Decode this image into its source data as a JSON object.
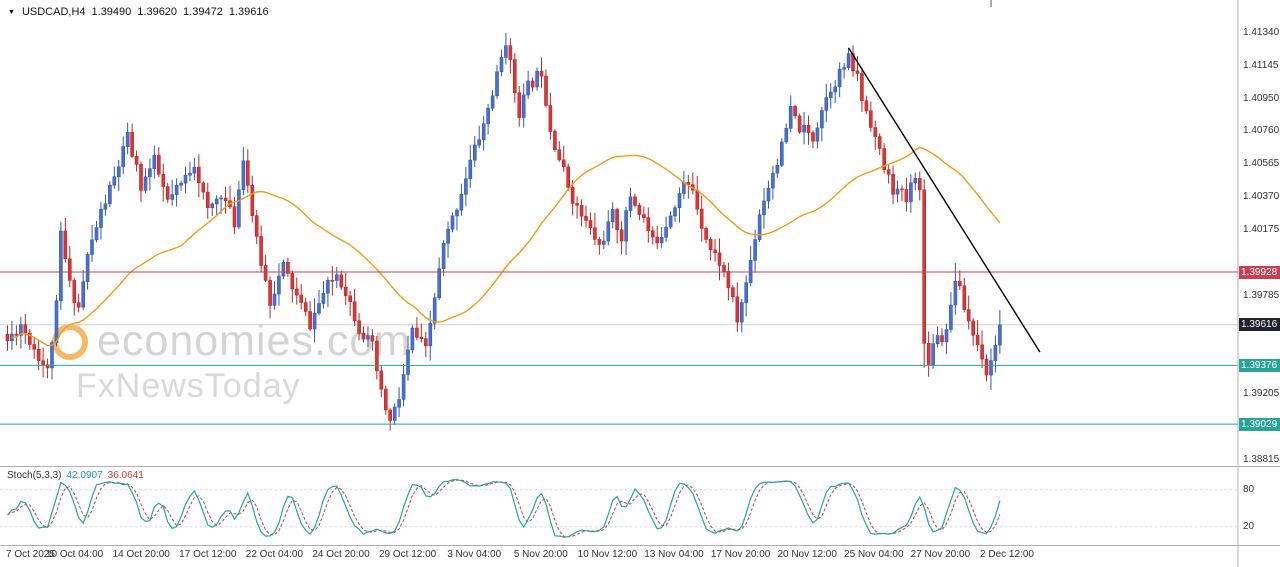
{
  "header": {
    "symbol": "USDCAD,H4",
    "open": "1.39490",
    "high": "1.39620",
    "low": "1.39472",
    "close": "1.39616"
  },
  "watermark": {
    "line1": "economies.com",
    "line2": "FxNewsToday"
  },
  "indicator": {
    "name": "Stoch(5,3,3)",
    "k": "42.0907",
    "d": "36.0641"
  },
  "chart_data": {
    "type": "candlestick",
    "symbol": "USDCAD",
    "timeframe": "H4",
    "last_quote": {
      "open": 1.3949,
      "high": 1.3962,
      "low": 1.39472,
      "close": 1.39616
    },
    "last_close": 1.39616,
    "candle_count": 224,
    "y_ticks": [
      "1.41340",
      "1.41145",
      "1.40950",
      "1.40760",
      "1.40565",
      "1.40370",
      "1.40175",
      "1.39785",
      "1.39205",
      "1.38815"
    ],
    "y_range": [
      1.38815,
      1.4134
    ],
    "x_labels": [
      "7 Oct 2025",
      "10 Oct 04:00",
      "14 Oct 20:00",
      "17 Oct 12:00",
      "22 Oct 04:00",
      "24 Oct 20:00",
      "29 Oct 12:00",
      "3 Nov 04:00",
      "5 Nov 20:00",
      "10 Nov 12:00",
      "13 Nov 04:00",
      "17 Nov 20:00",
      "20 Nov 12:00",
      "25 Nov 04:00",
      "27 Nov 20:00",
      "2 Dec 12:00"
    ],
    "waypoints": [
      [
        0,
        1.3952
      ],
      [
        3,
        1.3962
      ],
      [
        6,
        1.3948
      ],
      [
        9,
        1.3934
      ],
      [
        11,
        1.3972
      ],
      [
        12,
        1.4015
      ],
      [
        14,
        1.3985
      ],
      [
        16,
        1.3972
      ],
      [
        18,
        1.4002
      ],
      [
        21,
        1.4028
      ],
      [
        24,
        1.4048
      ],
      [
        27,
        1.4072
      ],
      [
        30,
        1.4044
      ],
      [
        33,
        1.4058
      ],
      [
        36,
        1.4034
      ],
      [
        39,
        1.4044
      ],
      [
        42,
        1.4058
      ],
      [
        45,
        1.4028
      ],
      [
        48,
        1.404
      ],
      [
        51,
        1.4022
      ],
      [
        53,
        1.4062
      ],
      [
        56,
        1.401
      ],
      [
        59,
        1.3976
      ],
      [
        62,
        1.3996
      ],
      [
        65,
        1.3978
      ],
      [
        68,
        1.3962
      ],
      [
        71,
        1.398
      ],
      [
        74,
        1.3992
      ],
      [
        76,
        1.3982
      ],
      [
        79,
        1.396
      ],
      [
        82,
        1.3948
      ],
      [
        84,
        1.392
      ],
      [
        86,
        1.3904
      ],
      [
        88,
        1.3918
      ],
      [
        91,
        1.3958
      ],
      [
        94,
        1.3946
      ],
      [
        96,
        1.3978
      ],
      [
        98,
        1.4008
      ],
      [
        101,
        1.4032
      ],
      [
        104,
        1.4058
      ],
      [
        107,
        1.408
      ],
      [
        110,
        1.4108
      ],
      [
        112,
        1.413
      ],
      [
        114,
        1.41
      ],
      [
        115,
        1.4088
      ],
      [
        117,
        1.4102
      ],
      [
        120,
        1.4112
      ],
      [
        122,
        1.4078
      ],
      [
        124,
        1.406
      ],
      [
        126,
        1.4044
      ],
      [
        128,
        1.403
      ],
      [
        130,
        1.4022
      ],
      [
        133,
        1.4008
      ],
      [
        136,
        1.4026
      ],
      [
        138,
        1.4014
      ],
      [
        140,
        1.4038
      ],
      [
        143,
        1.4024
      ],
      [
        145,
        1.401
      ],
      [
        147,
        1.4016
      ],
      [
        150,
        1.4034
      ],
      [
        152,
        1.4044
      ],
      [
        154,
        1.4042
      ],
      [
        156,
        1.4022
      ],
      [
        158,
        1.4006
      ],
      [
        160,
        1.3999
      ],
      [
        162,
        1.3985
      ],
      [
        164,
        1.3964
      ],
      [
        166,
        1.3986
      ],
      [
        169,
        1.4028
      ],
      [
        172,
        1.4052
      ],
      [
        174,
        1.4066
      ],
      [
        176,
        1.4088
      ],
      [
        178,
        1.4078
      ],
      [
        181,
        1.4072
      ],
      [
        183,
        1.409
      ],
      [
        185,
        1.4102
      ],
      [
        187,
        1.411
      ],
      [
        189,
        1.4118
      ],
      [
        191,
        1.4108
      ],
      [
        192,
        1.4095
      ],
      [
        194,
        1.4082
      ],
      [
        195,
        1.4072
      ],
      [
        197,
        1.4054
      ],
      [
        199,
        1.4042
      ],
      [
        201,
        1.4038
      ],
      [
        202,
        1.4035
      ],
      [
        204,
        1.4052
      ],
      [
        205,
        1.404
      ],
      [
        206,
        1.395
      ],
      [
        207,
        1.3942
      ],
      [
        209,
        1.3958
      ],
      [
        210,
        1.3952
      ],
      [
        212,
        1.3972
      ],
      [
        213,
        1.399
      ],
      [
        215,
        1.3972
      ],
      [
        217,
        1.3956
      ],
      [
        219,
        1.3944
      ],
      [
        220,
        1.3934
      ],
      [
        221,
        1.394
      ],
      [
        222,
        1.3952
      ],
      [
        223,
        1.39616
      ]
    ],
    "pins": [
      [
        9,
        "l",
        1.393
      ],
      [
        12,
        "h",
        1.40225
      ],
      [
        27,
        "h",
        1.40785
      ],
      [
        53,
        "h",
        1.40665
      ],
      [
        86,
        "l",
        1.38992
      ],
      [
        112,
        "h",
        1.4134
      ],
      [
        120,
        "h",
        1.41195
      ],
      [
        164,
        "l",
        1.39582
      ],
      [
        189,
        "h",
        1.41252
      ],
      [
        206,
        "l",
        1.39362
      ],
      [
        213,
        "h",
        1.39982
      ],
      [
        220,
        "l",
        1.39281
      ]
    ],
    "levels": [
      {
        "price": 1.39928,
        "label": "1.39928",
        "type": "resistance",
        "line_color": "#c94053",
        "badge_color": "#c94053"
      },
      {
        "price": 1.39616,
        "label": "1.39616",
        "type": "current-price",
        "line_color": "#c9c9c9",
        "badge_color": "#23232e"
      },
      {
        "price": 1.39376,
        "label": "1.39376",
        "type": "support",
        "line_color": "#27a698",
        "badge_color": "#27a698"
      },
      {
        "price": 1.39029,
        "label": "1.39029",
        "type": "support",
        "line_color": "#27a698",
        "badge_color": "#27a698"
      }
    ],
    "trendline": {
      "from_idx": 189,
      "from_price": 1.41252,
      "to_idx": 232,
      "to_price": 1.39455
    },
    "ma": {
      "period": 40,
      "color": "#f39c12"
    },
    "stochastic": {
      "k": 5,
      "slowing": 3,
      "d": 3,
      "current_k": 42.0907,
      "current_d": 36.0641,
      "levels": [
        "80",
        "20"
      ],
      "k_color": "#1fa99e",
      "d_color": "#e03333"
    },
    "colors": {
      "up": "#4a6fd0",
      "up_edge": "#3257b5",
      "down": "#dc3535",
      "down_edge": "#bd2727",
      "grid": "#cfcfcf",
      "frame": "#b0b0b0",
      "trendline": "#000000"
    }
  }
}
